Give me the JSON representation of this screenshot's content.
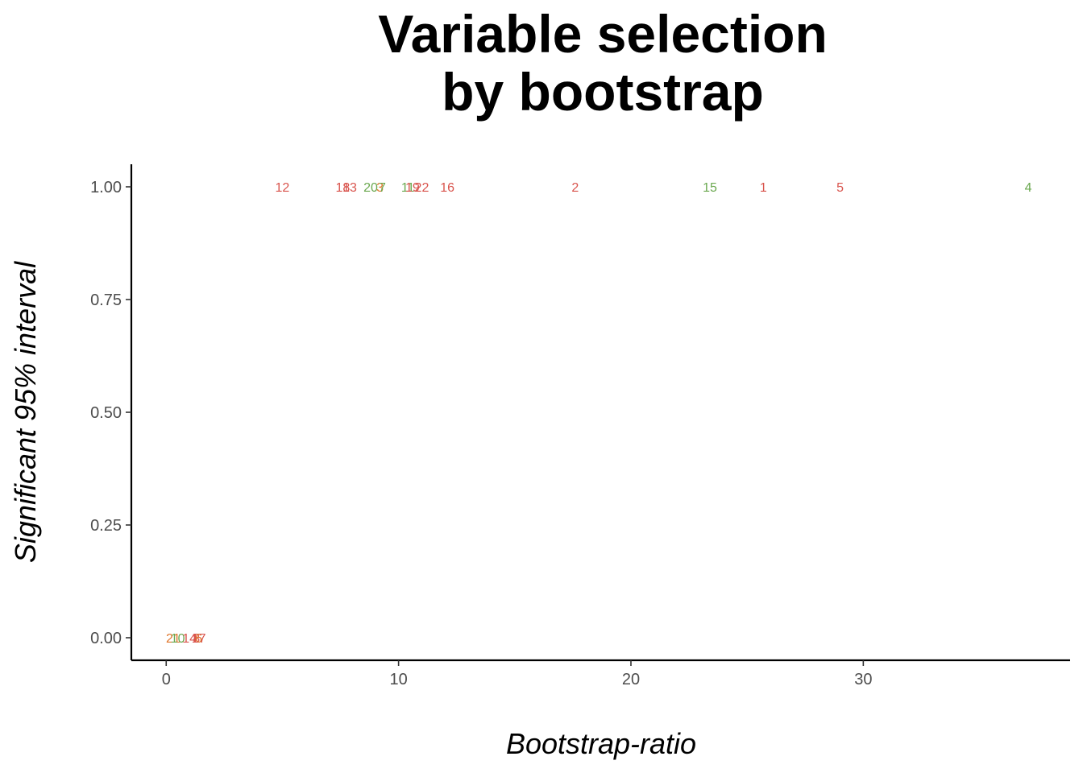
{
  "chart_data": {
    "type": "scatter",
    "title_lines": [
      "Variable selection",
      "by bootstrap"
    ],
    "xlabel": "Bootstrap-ratio",
    "ylabel": "Significant 95% interval",
    "xlim": [
      -1.5,
      38.9
    ],
    "ylim": [
      -0.05,
      1.05
    ],
    "x_ticks": [
      0,
      10,
      20,
      30
    ],
    "x_tick_labels": [
      "0",
      "10",
      "20",
      "30"
    ],
    "y_ticks": [
      0,
      0.25,
      0.5,
      0.75,
      1
    ],
    "y_tick_labels": [
      "0.00",
      "0.25",
      "0.50",
      "0.75",
      "1.00"
    ],
    "grid": false,
    "legend": "none",
    "colors": {
      "red": "#d9544d",
      "green": "#6aa84f",
      "orange": "#e0762c"
    },
    "points": [
      {
        "label": "12",
        "x": 5.0,
        "y": 1,
        "color": "red"
      },
      {
        "label": "18",
        "x": 7.6,
        "y": 1,
        "color": "red"
      },
      {
        "label": "13",
        "x": 7.9,
        "y": 1,
        "color": "red"
      },
      {
        "label": "20",
        "x": 8.8,
        "y": 1,
        "color": "green"
      },
      {
        "label": "3",
        "x": 9.2,
        "y": 1,
        "color": "orange"
      },
      {
        "label": "7",
        "x": 9.3,
        "y": 1,
        "color": "green"
      },
      {
        "label": "11",
        "x": 10.4,
        "y": 1,
        "color": "green"
      },
      {
        "label": "19",
        "x": 10.6,
        "y": 1,
        "color": "red"
      },
      {
        "label": "22",
        "x": 11.0,
        "y": 1,
        "color": "red"
      },
      {
        "label": "16",
        "x": 12.1,
        "y": 1,
        "color": "red"
      },
      {
        "label": "2",
        "x": 17.6,
        "y": 1,
        "color": "red"
      },
      {
        "label": "15",
        "x": 23.4,
        "y": 1,
        "color": "green"
      },
      {
        "label": "1",
        "x": 25.7,
        "y": 1,
        "color": "red"
      },
      {
        "label": "5",
        "x": 29.0,
        "y": 1,
        "color": "red"
      },
      {
        "label": "4",
        "x": 37.1,
        "y": 1,
        "color": "green"
      },
      {
        "label": "21",
        "x": 0.3,
        "y": 0,
        "color": "orange"
      },
      {
        "label": "10",
        "x": 0.5,
        "y": 0,
        "color": "green"
      },
      {
        "label": "14",
        "x": 1.0,
        "y": 0,
        "color": "red"
      },
      {
        "label": "8",
        "x": 1.3,
        "y": 0,
        "color": "red"
      },
      {
        "label": "6",
        "x": 1.4,
        "y": 0,
        "color": "orange"
      },
      {
        "label": "17",
        "x": 1.4,
        "y": 0,
        "color": "red"
      }
    ]
  }
}
